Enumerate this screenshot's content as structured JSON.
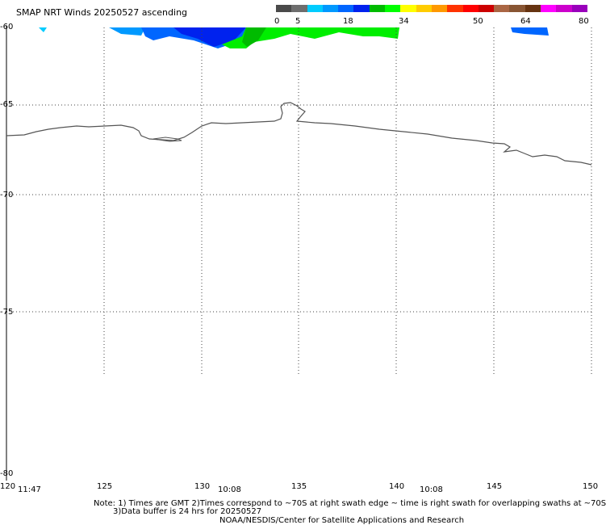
{
  "title": "SMAP NRT Winds 20250527 ascending",
  "colorbar": {
    "labels": [
      "0",
      "5",
      "18",
      "34",
      "50",
      "64",
      "80"
    ],
    "colors": [
      "#4a4a4a",
      "#6e6e6e",
      "#00ccff",
      "#0099ff",
      "#0066ff",
      "#0022ee",
      "#00bb00",
      "#00ff00",
      "#ffff00",
      "#ffcc00",
      "#ff9900",
      "#ff3300",
      "#ff0000",
      "#cc0000",
      "#aa6644",
      "#885533",
      "#663311",
      "#ff00ff",
      "#cc00cc",
      "#9900bb"
    ]
  },
  "axes": {
    "lat_labels": [
      "-60",
      "-65",
      "-70",
      "-75",
      "-80"
    ],
    "lon_labels": [
      "120",
      "125",
      "130",
      "135",
      "140",
      "145",
      "150"
    ],
    "times": [
      "11:47",
      "10:08",
      "10:08"
    ]
  },
  "notes": {
    "line1": "Note: 1) Times are GMT 2)Times correspond to ~70S at right swath edge ~ time is right swath for overlapping swaths at ~70S",
    "line2": "3)Data buffer is 24 hrs for 20250527",
    "line3": "NOAA/NESDIS/Center for Satellite Applications and Research"
  }
}
